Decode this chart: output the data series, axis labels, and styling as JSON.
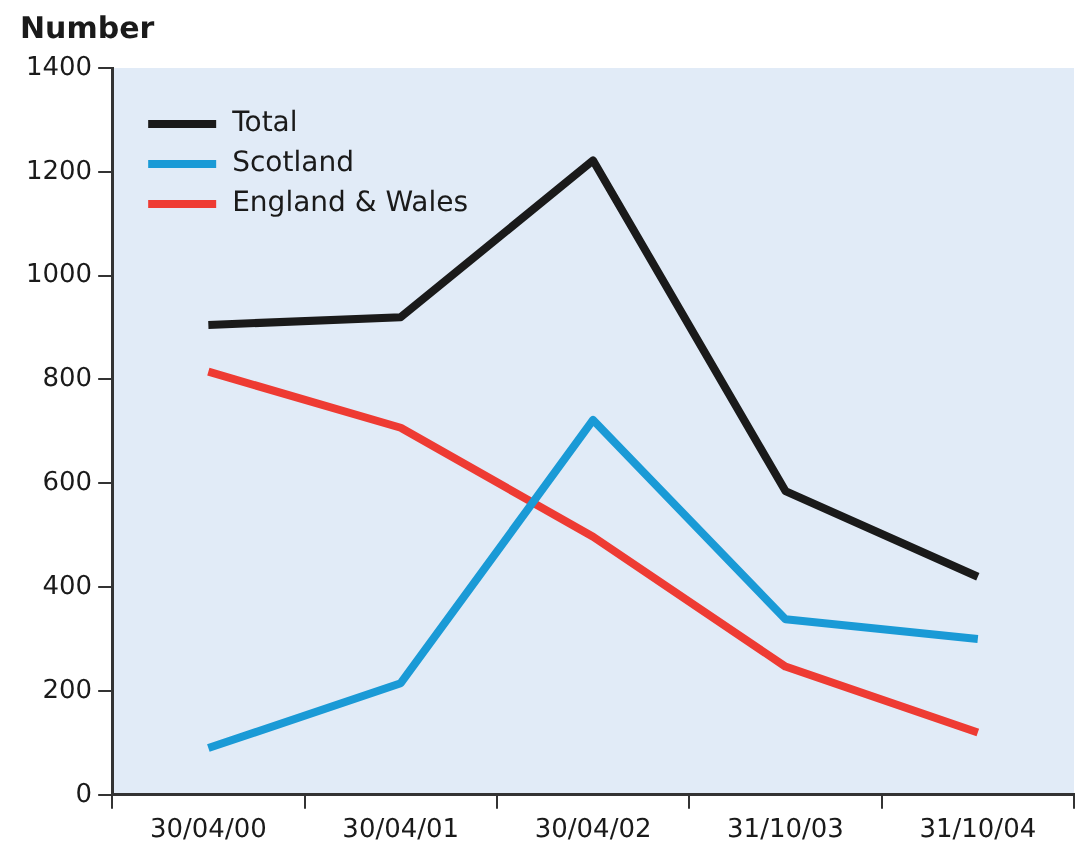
{
  "chart_data": {
    "type": "line",
    "ylabel": "Number",
    "categories": [
      "30/04/00",
      "30/04/01",
      "30/04/02",
      "31/10/03",
      "31/10/04"
    ],
    "series": [
      {
        "name": "Total",
        "color": "#1a1a1a",
        "values": [
          905,
          920,
          1222,
          585,
          420
        ]
      },
      {
        "name": "Scotland",
        "color": "#1a9ad6",
        "values": [
          90,
          215,
          722,
          338,
          300
        ]
      },
      {
        "name": "England & Wales",
        "color": "#ee3b33",
        "values": [
          815,
          707,
          497,
          247,
          120
        ]
      }
    ],
    "ylim": [
      0,
      1400
    ],
    "yticks": [
      0,
      200,
      400,
      600,
      800,
      1000,
      1200,
      1400
    ],
    "grid": false,
    "legend": "top left",
    "marker": "none",
    "line_style": "solid"
  }
}
